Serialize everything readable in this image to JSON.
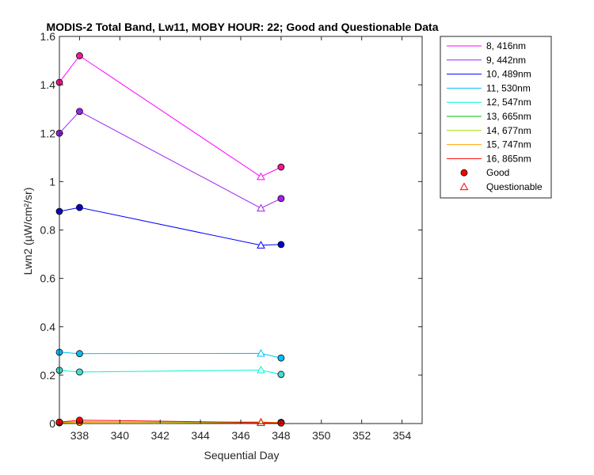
{
  "chart_data": {
    "type": "line",
    "title": "MODIS-2 Total Band, Lw11, MOBY HOUR: 22;  Good and Questionable Data",
    "xlabel": "Sequential Day",
    "ylabel": "Lwn2 (µW/cm²/sr)",
    "xlim": [
      337,
      355
    ],
    "ylim": [
      0,
      1.6
    ],
    "xticks": [
      "338",
      "340",
      "342",
      "344",
      "346",
      "348",
      "350",
      "352",
      "354"
    ],
    "yticks": [
      "0",
      "0.2",
      "0.4",
      "0.6",
      "0.8",
      "1",
      "1.2",
      "1.4",
      "1.6"
    ],
    "grid": false,
    "legend_position": "outside-right",
    "x": [
      337,
      338,
      347,
      348
    ],
    "series": [
      {
        "name": "8, 416nm",
        "color": "#ff00ff",
        "fill": "#ff1493",
        "values": [
          1.41,
          1.52,
          1.02,
          1.06
        ],
        "flags": [
          "good",
          "good",
          "questionable",
          "good"
        ]
      },
      {
        "name": "9, 442nm",
        "color": "#a020f0",
        "fill": "#a020f0",
        "values": [
          1.2,
          1.29,
          0.89,
          0.93
        ],
        "flags": [
          "good",
          "good",
          "questionable",
          "good"
        ]
      },
      {
        "name": "10, 489nm",
        "color": "#0000ff",
        "fill": "#0000cd",
        "values": [
          0.877,
          0.893,
          0.737,
          0.74
        ],
        "flags": [
          "good",
          "good",
          "questionable",
          "good"
        ]
      },
      {
        "name": "11, 530nm",
        "color": "#00bfff",
        "fill": "#00bfff",
        "values": [
          0.295,
          0.289,
          0.29,
          0.271
        ],
        "flags": [
          "good",
          "good",
          "questionable",
          "good"
        ]
      },
      {
        "name": "12, 547nm",
        "color": "#00f5d4",
        "fill": "#40e0d0",
        "values": [
          0.22,
          0.213,
          0.221,
          0.203
        ],
        "flags": [
          "good",
          "good",
          "questionable",
          "good"
        ]
      },
      {
        "name": "13, 665nm",
        "color": "#00c000",
        "fill": "#00c000",
        "values": [
          0.004,
          0.007,
          0.003,
          0.004
        ],
        "flags": [
          "good",
          "good",
          "questionable",
          "good"
        ]
      },
      {
        "name": "14, 677nm",
        "color": "#a0e000",
        "fill": "#a0e000",
        "values": [
          0.005,
          0.008,
          0.004,
          0.005
        ],
        "flags": [
          "good",
          "good",
          "questionable",
          "good"
        ]
      },
      {
        "name": "15, 747nm",
        "color": "#ffa500",
        "fill": "#ffa500",
        "values": [
          0.003,
          0.005,
          0.007,
          0.003
        ],
        "flags": [
          "good",
          "good",
          "questionable",
          "good"
        ]
      },
      {
        "name": "16, 865nm",
        "color": "#ff0000",
        "fill": "#ff0000",
        "values": [
          0.006,
          0.014,
          0.004,
          0.002
        ],
        "flags": [
          "good",
          "good",
          "questionable",
          "good"
        ]
      }
    ],
    "marker_legend": [
      {
        "name": "Good",
        "marker": "circle",
        "fill": "#ff0000"
      },
      {
        "name": "Questionable",
        "marker": "triangle",
        "stroke": "#ff0000"
      }
    ]
  }
}
